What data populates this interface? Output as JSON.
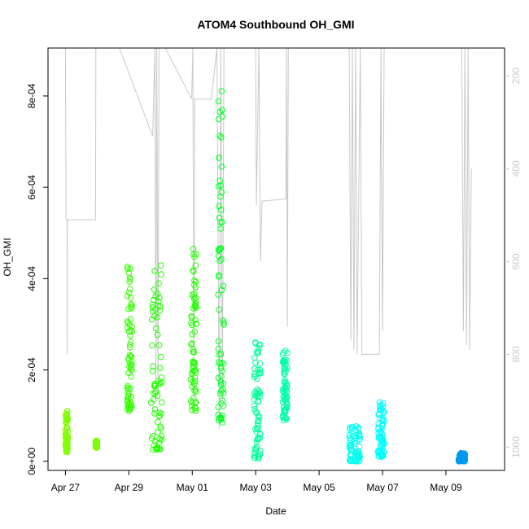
{
  "chart_data": {
    "type": "scatter",
    "title": "ATOM4 Southbound OH_GMI",
    "xlabel": "Date",
    "ylabel": "OH_GMI",
    "x_ticks": [
      "Apr 27",
      "Apr 29",
      "May 01",
      "May 03",
      "May 05",
      "May 07",
      "May 09"
    ],
    "y_ticks": [
      "0e+00",
      "2e-04",
      "4e-04",
      "6e-04",
      "8e-04"
    ],
    "y_tick_values": [
      0,
      0.0002,
      0.0004,
      0.0006,
      0.0008
    ],
    "y2_ticks": [
      "200",
      "400",
      "600",
      "800",
      "1000"
    ],
    "y2_tick_values": [
      200,
      400,
      600,
      800,
      1000
    ],
    "x_range_days": [
      -0.55,
      13.85
    ],
    "ylim": [
      -2e-05,
      0.000905
    ],
    "y2lim": [
      1050,
      140
    ],
    "x_axis_note": "x values are days after Apr 27 (tick at Apr 27 = 0)",
    "grid": false,
    "series": [
      {
        "name": "",
        "color": "#80ff00",
        "day_start": 0.0,
        "day_end": 0.08,
        "y_min": 2e-05,
        "y_max": 0.00011
      },
      {
        "name": "",
        "color": "#7aff00",
        "day_start": 0.95,
        "day_end": 1.0,
        "y_min": 3e-05,
        "y_max": 4.5e-05
      },
      {
        "name": "",
        "color": "#33ff00",
        "day_start": 1.95,
        "day_end": 2.1,
        "y_min": 0.00011,
        "y_max": 0.00043
      },
      {
        "name": "",
        "color": "#22ff00",
        "day_start": 2.7,
        "day_end": 3.05,
        "y_min": 2.5e-05,
        "y_max": 0.00043
      },
      {
        "name": "",
        "color": "#22ff00",
        "day_start": 3.95,
        "day_end": 4.12,
        "y_min": 0.00011,
        "y_max": 0.00047
      },
      {
        "name": "",
        "color": "#00ff20",
        "day_start": 4.82,
        "day_end": 5.0,
        "y_min": 8.5e-05,
        "y_max": 0.00088
      },
      {
        "name": "",
        "color": "#00ff99",
        "day_start": 5.95,
        "day_end": 6.15,
        "y_min": 5e-06,
        "y_max": 0.00027
      },
      {
        "name": "",
        "color": "#00ffaa",
        "day_start": 6.85,
        "day_end": 7.0,
        "y_min": 9e-05,
        "y_max": 0.00025
      },
      {
        "name": "",
        "color": "#00ffee",
        "day_start": 8.95,
        "day_end": 9.3,
        "y_min": 0.0,
        "y_max": 8e-05
      },
      {
        "name": "",
        "color": "#00ffff",
        "day_start": 9.85,
        "day_end": 10.05,
        "y_min": 1e-05,
        "y_max": 0.00013
      },
      {
        "name": "",
        "color": "#0099ee",
        "day_start": 12.4,
        "day_end": 12.6,
        "y_min": 0.0,
        "y_max": 2e-05
      }
    ],
    "pressure_trace": {
      "color": "#c8c8c8",
      "axis": "right",
      "unit_axis_values": "right-axis units (inverted)",
      "points": [
        [
          0.0,
          140
        ],
        [
          0.02,
          510
        ],
        [
          0.05,
          510
        ],
        [
          0.05,
          800
        ],
        [
          0.06,
          510
        ],
        [
          0.95,
          510
        ],
        [
          0.96,
          140
        ],
        [
          1.7,
          140
        ],
        [
          2.75,
          330
        ],
        [
          2.82,
          140
        ],
        [
          2.85,
          900
        ],
        [
          2.88,
          140
        ],
        [
          2.92,
          880
        ],
        [
          2.95,
          140
        ],
        [
          3.15,
          140
        ],
        [
          3.98,
          250
        ],
        [
          4.02,
          140
        ],
        [
          4.05,
          900
        ],
        [
          4.08,
          250
        ],
        [
          4.6,
          250
        ],
        [
          4.78,
          140
        ],
        [
          4.85,
          960
        ],
        [
          4.9,
          140
        ],
        [
          4.95,
          900
        ],
        [
          5.0,
          140
        ],
        [
          6.0,
          140
        ],
        [
          6.02,
          480
        ],
        [
          6.1,
          140
        ],
        [
          6.15,
          600
        ],
        [
          6.2,
          470
        ],
        [
          6.95,
          465
        ],
        [
          6.97,
          140
        ],
        [
          7.0,
          740
        ],
        [
          7.03,
          140
        ],
        [
          8.95,
          140
        ],
        [
          9.0,
          770
        ],
        [
          9.05,
          140
        ],
        [
          9.1,
          790
        ],
        [
          9.15,
          140
        ],
        [
          9.2,
          800
        ],
        [
          9.3,
          140
        ],
        [
          9.35,
          800
        ],
        [
          9.9,
          800
        ],
        [
          9.95,
          140
        ],
        [
          10.0,
          750
        ],
        [
          10.05,
          140
        ],
        [
          12.5,
          140
        ],
        [
          12.55,
          750
        ],
        [
          12.6,
          140
        ],
        [
          12.65,
          780
        ],
        [
          12.7,
          140
        ],
        [
          12.75,
          790
        ],
        [
          12.8,
          400
        ]
      ]
    }
  }
}
